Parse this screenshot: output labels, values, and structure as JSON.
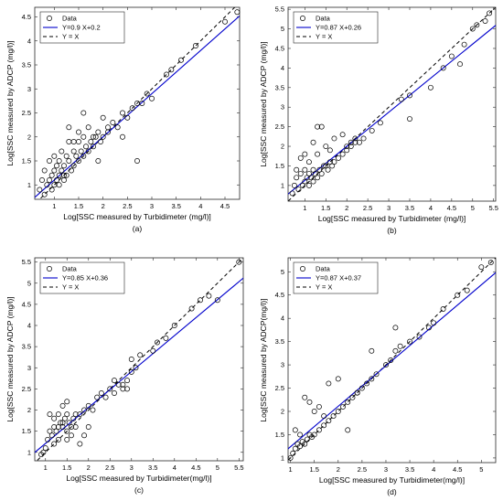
{
  "chart_data": [
    {
      "type": "scatter",
      "caption": "(a)",
      "xlabel": "Log[SSC measured by Turbidimeter (mg/l)]",
      "ylabel": "Log[SSC measured by ADCP (mg/l)]",
      "xlim": [
        0.6,
        4.8
      ],
      "ylim": [
        0.7,
        4.7
      ],
      "xticks": [
        "1",
        "1.5",
        "2",
        "2.5",
        "3",
        "3.5",
        "4",
        "4.5"
      ],
      "xtick_values": [
        1,
        1.5,
        2,
        2.5,
        3,
        3.5,
        4,
        4.5
      ],
      "yticks": [
        "1",
        "1.5",
        "2",
        "2.5",
        "3",
        "3.5",
        "4",
        "4.5"
      ],
      "ytick_values": [
        1,
        1.5,
        2,
        2.5,
        3,
        3.5,
        4,
        4.5
      ],
      "legend": [
        "Data",
        "Y=0.9 X+0.2",
        "Y = X"
      ],
      "legend_position": "top-left",
      "fit": {
        "slope": 0.9,
        "intercept": 0.2,
        "color": "#0000cc"
      },
      "identity_line": true,
      "x": [
        0.7,
        0.75,
        0.8,
        0.8,
        0.85,
        0.9,
        0.9,
        0.95,
        0.95,
        1.0,
        1.0,
        1.0,
        1.05,
        1.05,
        1.1,
        1.1,
        1.1,
        1.15,
        1.15,
        1.2,
        1.2,
        1.25,
        1.25,
        1.3,
        1.3,
        1.35,
        1.4,
        1.4,
        1.45,
        1.5,
        1.5,
        1.55,
        1.6,
        1.6,
        1.65,
        1.7,
        1.7,
        1.75,
        1.8,
        1.85,
        1.9,
        1.95,
        2.0,
        2.0,
        2.1,
        2.2,
        2.3,
        2.4,
        2.5,
        2.6,
        2.7,
        2.8,
        2.9,
        3.0,
        3.3,
        3.4,
        3.6,
        3.9,
        4.5,
        4.75,
        1.2,
        1.4,
        1.6,
        1.9,
        2.1,
        2.4,
        2.7,
        1.3,
        1.5,
        1.8
      ],
      "y": [
        0.9,
        1.1,
        0.8,
        1.3,
        1.0,
        1.1,
        1.5,
        0.9,
        1.2,
        1.0,
        1.3,
        1.6,
        1.1,
        1.4,
        1.0,
        1.2,
        1.5,
        1.3,
        1.7,
        1.1,
        1.4,
        1.2,
        1.6,
        1.5,
        1.9,
        1.3,
        1.4,
        1.7,
        1.6,
        1.5,
        1.9,
        1.7,
        1.6,
        2.0,
        1.8,
        1.7,
        2.2,
        1.9,
        1.8,
        2.0,
        2.1,
        1.9,
        2.0,
        2.4,
        2.1,
        2.3,
        2.2,
        2.5,
        2.4,
        2.6,
        2.7,
        2.7,
        2.9,
        2.8,
        3.3,
        3.4,
        3.6,
        3.9,
        4.4,
        4.6,
        1.2,
        1.9,
        2.5,
        1.5,
        2.2,
        2.0,
        1.5,
        2.2,
        2.1,
        2.0
      ]
    },
    {
      "type": "scatter",
      "caption": "(b)",
      "xlabel": "Log[SSC measured by Turbidimeter (mg/l)]",
      "ylabel": "Log[SSC measured by ADCP (mg/l)]",
      "xlim": [
        0.6,
        5.55
      ],
      "ylim": [
        0.6,
        5.55
      ],
      "xticks": [
        "1",
        "1.5",
        "2",
        "2.5",
        "3",
        "3.5",
        "4",
        "4.5",
        "5",
        "5.5"
      ],
      "xtick_values": [
        1,
        1.5,
        2,
        2.5,
        3,
        3.5,
        4,
        4.5,
        5,
        5.5
      ],
      "yticks": [
        "1",
        "1.5",
        "2",
        "2.5",
        "3",
        "3.5",
        "4",
        "4.5",
        "5",
        "5.5"
      ],
      "ytick_values": [
        1,
        1.5,
        2,
        2.5,
        3,
        3.5,
        4,
        4.5,
        5,
        5.5
      ],
      "legend": [
        "Data",
        "Y=0.87 X+0.26",
        "Y = X"
      ],
      "legend_position": "top-left",
      "fit": {
        "slope": 0.87,
        "intercept": 0.26,
        "color": "#0000cc"
      },
      "identity_line": true,
      "x": [
        0.7,
        0.75,
        0.8,
        0.85,
        0.9,
        0.95,
        1.0,
        1.0,
        1.05,
        1.1,
        1.1,
        1.15,
        1.2,
        1.2,
        1.25,
        1.3,
        1.35,
        1.4,
        1.45,
        1.5,
        1.55,
        1.6,
        1.65,
        1.7,
        1.8,
        1.9,
        2.0,
        2.1,
        2.2,
        2.3,
        2.4,
        2.6,
        2.8,
        3.3,
        3.5,
        3.5,
        4.0,
        4.3,
        4.5,
        4.7,
        4.8,
        5.0,
        5.1,
        5.3,
        5.4,
        1.3,
        1.4,
        1.2,
        1.0,
        0.9,
        1.5,
        1.7,
        1.9,
        2.1,
        2.2,
        1.1,
        1.3,
        0.8,
        1.6,
        2.0
      ],
      "y": [
        0.8,
        1.0,
        1.2,
        0.9,
        1.3,
        1.0,
        1.1,
        1.4,
        1.2,
        1.0,
        1.3,
        1.2,
        1.1,
        1.4,
        1.3,
        1.2,
        1.4,
        1.3,
        1.5,
        1.5,
        1.4,
        1.6,
        1.5,
        1.6,
        1.7,
        1.8,
        1.9,
        2.0,
        2.1,
        2.1,
        2.2,
        2.4,
        2.6,
        3.2,
        2.7,
        3.3,
        3.5,
        4.0,
        4.3,
        4.1,
        4.6,
        5.0,
        5.1,
        5.2,
        5.4,
        2.5,
        2.5,
        2.1,
        1.8,
        1.7,
        2.0,
        2.2,
        2.3,
        2.1,
        2.2,
        1.6,
        1.8,
        1.4,
        1.9,
        2.0
      ]
    },
    {
      "type": "scatter",
      "caption": "(c)",
      "xlabel": "Log[SSC measured by Turbidimeter(mg/l)]",
      "ylabel": "Log[SSC measured by ADCP (mg/l)]",
      "xlim": [
        0.75,
        5.6
      ],
      "ylim": [
        0.8,
        5.6
      ],
      "xticks": [
        "1",
        "1.5",
        "2",
        "2.5",
        "3",
        "3.5",
        "4",
        "4.5",
        "5",
        "5.5"
      ],
      "xtick_values": [
        1,
        1.5,
        2,
        2.5,
        3,
        3.5,
        4,
        4.5,
        5,
        5.5
      ],
      "yticks": [
        "1",
        "1.5",
        "2",
        "2.5",
        "3",
        "3.5",
        "4",
        "4.5",
        "5",
        "5.5"
      ],
      "ytick_values": [
        1,
        1.5,
        2,
        2.5,
        3,
        3.5,
        4,
        4.5,
        5,
        5.5
      ],
      "legend": [
        "Data",
        "Y=0.85 X+0.36",
        "Y = X"
      ],
      "legend_position": "top-left",
      "fit": {
        "slope": 0.85,
        "intercept": 0.36,
        "color": "#0000cc"
      },
      "identity_line": true,
      "x": [
        0.9,
        0.95,
        1.0,
        1.05,
        1.1,
        1.1,
        1.15,
        1.2,
        1.2,
        1.25,
        1.3,
        1.3,
        1.35,
        1.4,
        1.45,
        1.5,
        1.5,
        1.55,
        1.6,
        1.65,
        1.7,
        1.8,
        1.9,
        2.0,
        2.1,
        2.2,
        2.3,
        2.4,
        2.5,
        2.6,
        2.7,
        2.8,
        2.9,
        3.0,
        3.0,
        3.1,
        3.2,
        3.5,
        3.6,
        3.8,
        4.0,
        4.4,
        4.6,
        4.8,
        5.0,
        5.5,
        1.2,
        1.3,
        1.4,
        1.5,
        1.6,
        1.7,
        1.8,
        1.4,
        1.5,
        1.9,
        2.0,
        2.6,
        2.8,
        2.9
      ],
      "y": [
        0.95,
        1.0,
        1.1,
        1.3,
        1.5,
        1.9,
        1.4,
        1.6,
        1.8,
        1.5,
        1.6,
        1.9,
        1.7,
        1.6,
        1.8,
        1.5,
        1.9,
        1.7,
        1.6,
        1.8,
        1.9,
        1.9,
        2.0,
        2.1,
        2.0,
        2.3,
        2.4,
        2.3,
        2.5,
        2.4,
        2.6,
        2.5,
        2.7,
        2.9,
        3.2,
        3.0,
        3.3,
        3.4,
        3.6,
        3.7,
        4.0,
        4.4,
        4.6,
        4.7,
        4.6,
        5.5,
        1.2,
        1.3,
        2.1,
        2.2,
        1.4,
        1.6,
        1.2,
        1.7,
        1.3,
        1.4,
        1.6,
        2.7,
        2.6,
        2.5
      ]
    },
    {
      "type": "scatter",
      "caption": "(d)",
      "xlabel": "Log[SSC measured by Turbidimeter(mg/l)]",
      "ylabel": "Log[SSC measured by ADCP(mg/l)]",
      "xlim": [
        0.95,
        5.3
      ],
      "ylim": [
        0.9,
        5.3
      ],
      "xticks": [
        "1",
        "1.5",
        "2",
        "2.5",
        "3",
        "3.5",
        "4",
        "4.5",
        "5"
      ],
      "xtick_values": [
        1,
        1.5,
        2,
        2.5,
        3,
        3.5,
        4,
        4.5,
        5
      ],
      "yticks": [
        "1",
        "1.5",
        "2",
        "2.5",
        "3",
        "3.5",
        "4",
        "4.5",
        "5"
      ],
      "ytick_values": [
        1,
        1.5,
        2,
        2.5,
        3,
        3.5,
        4,
        4.5,
        5
      ],
      "legend": [
        "Data",
        "Y=0.87 X+0.37",
        "Y = X"
      ],
      "legend_position": "top-left",
      "fit": {
        "slope": 0.87,
        "intercept": 0.37,
        "color": "#0000cc"
      },
      "identity_line": true,
      "x": [
        1.0,
        1.05,
        1.1,
        1.15,
        1.2,
        1.25,
        1.3,
        1.35,
        1.4,
        1.45,
        1.5,
        1.6,
        1.7,
        1.8,
        1.9,
        2.0,
        2.1,
        2.2,
        2.3,
        2.4,
        2.5,
        2.6,
        2.7,
        2.8,
        3.0,
        3.1,
        3.2,
        3.3,
        3.5,
        3.7,
        3.9,
        4.0,
        4.2,
        4.5,
        4.7,
        5.0,
        5.2,
        1.3,
        1.4,
        1.5,
        1.6,
        1.7,
        1.8,
        2.0,
        2.2,
        2.4,
        1.2,
        1.1,
        2.7,
        3.2
      ],
      "y": [
        1.0,
        1.1,
        1.2,
        1.3,
        1.25,
        1.35,
        1.3,
        1.4,
        1.5,
        1.45,
        1.5,
        1.6,
        1.7,
        1.8,
        1.9,
        2.0,
        2.1,
        2.2,
        2.3,
        2.4,
        2.5,
        2.6,
        2.7,
        2.8,
        3.0,
        3.1,
        3.3,
        3.4,
        3.5,
        3.6,
        3.8,
        3.9,
        4.2,
        4.5,
        4.6,
        5.1,
        5.2,
        2.3,
        2.2,
        2.0,
        2.1,
        1.9,
        2.6,
        2.7,
        1.6,
        2.4,
        1.5,
        1.6,
        3.3,
        3.8
      ]
    }
  ]
}
